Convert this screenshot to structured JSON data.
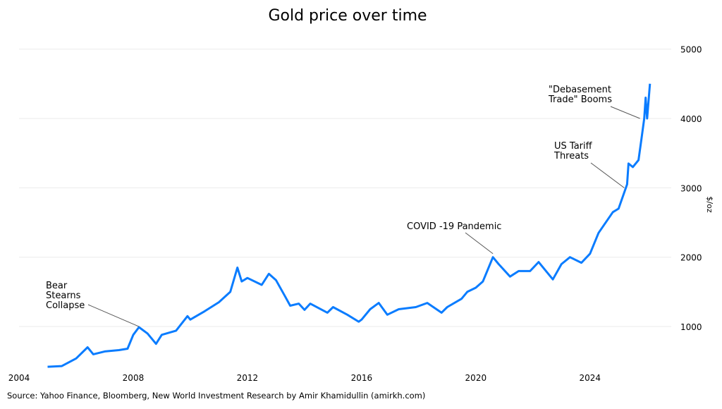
{
  "chart_data": {
    "type": "line",
    "title": "Gold price over time",
    "ylabel": "$/oz",
    "xlabel": "",
    "xlim": [
      2004,
      2026.5
    ],
    "ylim": [
      370,
      5200
    ],
    "x_ticks": [
      "2004",
      "2008",
      "2012",
      "2016",
      "2020",
      "2024"
    ],
    "y_ticks": [
      "1000",
      "2000",
      "3000",
      "4000",
      "5000"
    ],
    "y_axis_side": "right",
    "grid": "horizontal",
    "line_color": "#0a7cff",
    "series": [
      {
        "x": [
          2005.0,
          2005.5,
          2006.0,
          2006.4,
          2006.6,
          2007.0,
          2007.5,
          2007.8,
          2008.0,
          2008.2,
          2008.5,
          2008.8,
          2009.0,
          2009.5,
          2009.9,
          2010.0,
          2010.5,
          2011.0,
          2011.4,
          2011.65,
          2011.8,
          2012.0,
          2012.5,
          2012.75,
          2013.0,
          2013.3,
          2013.5,
          2013.8,
          2014.0,
          2014.2,
          2014.8,
          2015.0,
          2015.5,
          2015.9,
          2016.0,
          2016.3,
          2016.6,
          2016.9,
          2017.3,
          2017.9,
          2018.3,
          2018.8,
          2019.0,
          2019.5,
          2019.7,
          2020.0,
          2020.25,
          2020.6,
          2020.8,
          2021.2,
          2021.5,
          2021.9,
          2022.2,
          2022.7,
          2023.0,
          2023.3,
          2023.7,
          2024.0,
          2024.3,
          2024.8,
          2025.0,
          2025.3,
          2025.35,
          2025.5,
          2025.7,
          2025.8,
          2025.9,
          2025.95,
          2026.0,
          2026.1
        ],
        "y": [
          420,
          430,
          540,
          700,
          600,
          640,
          660,
          680,
          880,
          990,
          900,
          750,
          880,
          940,
          1150,
          1100,
          1220,
          1350,
          1500,
          1850,
          1650,
          1700,
          1600,
          1760,
          1670,
          1450,
          1300,
          1330,
          1240,
          1330,
          1200,
          1280,
          1170,
          1070,
          1100,
          1250,
          1340,
          1170,
          1250,
          1280,
          1340,
          1200,
          1280,
          1400,
          1500,
          1560,
          1650,
          2000,
          1900,
          1720,
          1800,
          1800,
          1930,
          1680,
          1900,
          2000,
          1920,
          2050,
          2350,
          2650,
          2700,
          3050,
          3350,
          3300,
          3400,
          3700,
          4000,
          4300,
          4000,
          4500
        ]
      }
    ],
    "annotations": [
      {
        "text": [
          "Bear",
          "Stearns",
          "Collapse"
        ],
        "x": 2008.2,
        "y": 1000
      },
      {
        "text": [
          "COVID -19 Pandemic"
        ],
        "x": 2020.6,
        "y": 2050
      },
      {
        "text": [
          "US Tariff",
          "Threats"
        ],
        "x": 2025.2,
        "y": 3000
      },
      {
        "text": [
          "\"Debasement",
          "Trade\" Booms"
        ],
        "x": 2025.75,
        "y": 4000
      }
    ]
  },
  "source": "Source: Yahoo Finance, Bloomberg, New World Investment Research by Amir Khamidullin (amirkh.com)"
}
